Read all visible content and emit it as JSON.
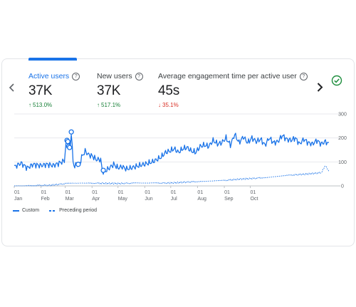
{
  "metrics": [
    {
      "label": "Active users",
      "value": "37K",
      "change": "513.0%",
      "direction": "up"
    },
    {
      "label": "New users",
      "value": "37K",
      "change": "517.1%",
      "direction": "up"
    },
    {
      "label": "Average engagement time per active user",
      "value": "45s",
      "change": "35.1%",
      "direction": "down"
    }
  ],
  "icons": {
    "help": "?",
    "arrow_up": "↑",
    "arrow_down": "↓",
    "prev": "chevron-left-icon",
    "next": "chevron-right-icon",
    "status": "check-circle-icon"
  },
  "colors": {
    "accent": "#1a73e8",
    "positive": "#188038",
    "negative": "#d93025",
    "status": "#1e8e3e"
  },
  "legend": {
    "custom": "Custom",
    "preceding": "Preceding period"
  },
  "chart_data": {
    "type": "line",
    "y_ticks": [
      "300",
      "200",
      "100",
      "0"
    ],
    "ylim": [
      0,
      300
    ],
    "grid": true,
    "x_ticks": [
      {
        "top": "01",
        "bottom": "Jan"
      },
      {
        "top": "01",
        "bottom": "Feb"
      },
      {
        "top": "01",
        "bottom": "Mar"
      },
      {
        "top": "01",
        "bottom": "Apr"
      },
      {
        "top": "01",
        "bottom": "May"
      },
      {
        "top": "01",
        "bottom": "Jun"
      },
      {
        "top": "01",
        "bottom": "Jul"
      },
      {
        "top": "01",
        "bottom": "Aug"
      },
      {
        "top": "01",
        "bottom": "Sep"
      },
      {
        "top": "01",
        "bottom": "Oct"
      }
    ],
    "series": [
      {
        "name": "Custom",
        "style": "solid",
        "anchors": [
          [
            0,
            80
          ],
          [
            8,
            95
          ],
          [
            15,
            75
          ],
          [
            22,
            90
          ],
          [
            30,
            85
          ],
          [
            38,
            90
          ],
          [
            45,
            85
          ],
          [
            52,
            95
          ],
          [
            58,
            105
          ],
          [
            60,
            180
          ],
          [
            62,
            185
          ],
          [
            63,
            150
          ],
          [
            64,
            185
          ],
          [
            65,
            170
          ],
          [
            66,
            225
          ],
          [
            68,
            100
          ],
          [
            70,
            80
          ],
          [
            72,
            95
          ],
          [
            75,
            85
          ],
          [
            78,
            120
          ],
          [
            82,
            145
          ],
          [
            86,
            130
          ],
          [
            90,
            125
          ],
          [
            95,
            110
          ],
          [
            100,
            110
          ],
          [
            102,
            60
          ],
          [
            105,
            60
          ],
          [
            110,
            75
          ],
          [
            115,
            90
          ],
          [
            120,
            75
          ],
          [
            125,
            80
          ],
          [
            130,
            70
          ],
          [
            135,
            75
          ],
          [
            140,
            80
          ],
          [
            150,
            90
          ],
          [
            160,
            100
          ],
          [
            170,
            120
          ],
          [
            175,
            140
          ],
          [
            180,
            145
          ],
          [
            185,
            155
          ],
          [
            190,
            140
          ],
          [
            195,
            155
          ],
          [
            200,
            160
          ],
          [
            205,
            145
          ],
          [
            210,
            140
          ],
          [
            215,
            165
          ],
          [
            220,
            170
          ],
          [
            225,
            165
          ],
          [
            230,
            190
          ],
          [
            235,
            175
          ],
          [
            240,
            180
          ],
          [
            245,
            200
          ],
          [
            250,
            170
          ],
          [
            255,
            215
          ],
          [
            260,
            180
          ],
          [
            265,
            205
          ],
          [
            270,
            180
          ],
          [
            275,
            200
          ],
          [
            280,
            185
          ],
          [
            285,
            195
          ],
          [
            290,
            170
          ],
          [
            295,
            200
          ],
          [
            300,
            180
          ],
          [
            305,
            185
          ],
          [
            310,
            210
          ],
          [
            315,
            195
          ],
          [
            320,
            190
          ],
          [
            325,
            200
          ],
          [
            330,
            175
          ],
          [
            335,
            195
          ],
          [
            340,
            180
          ],
          [
            345,
            175
          ],
          [
            350,
            190
          ],
          [
            355,
            175
          ],
          [
            360,
            185
          ],
          [
            364,
            175
          ]
        ]
      },
      {
        "name": "Preceding period",
        "style": "dashed",
        "anchors": [
          [
            0,
            0
          ],
          [
            40,
            2
          ],
          [
            60,
            10
          ],
          [
            80,
            12
          ],
          [
            120,
            10
          ],
          [
            140,
            12
          ],
          [
            180,
            12
          ],
          [
            210,
            18
          ],
          [
            240,
            22
          ],
          [
            260,
            28
          ],
          [
            280,
            32
          ],
          [
            300,
            38
          ],
          [
            320,
            45
          ],
          [
            340,
            50
          ],
          [
            355,
            55
          ],
          [
            360,
            85
          ],
          [
            364,
            60
          ]
        ]
      }
    ],
    "markers": [
      [
        61,
        190
      ],
      [
        62,
        185
      ],
      [
        63,
        165
      ],
      [
        64,
        160
      ],
      [
        66,
        225
      ],
      [
        74,
        90
      ],
      [
        103,
        65
      ]
    ]
  }
}
